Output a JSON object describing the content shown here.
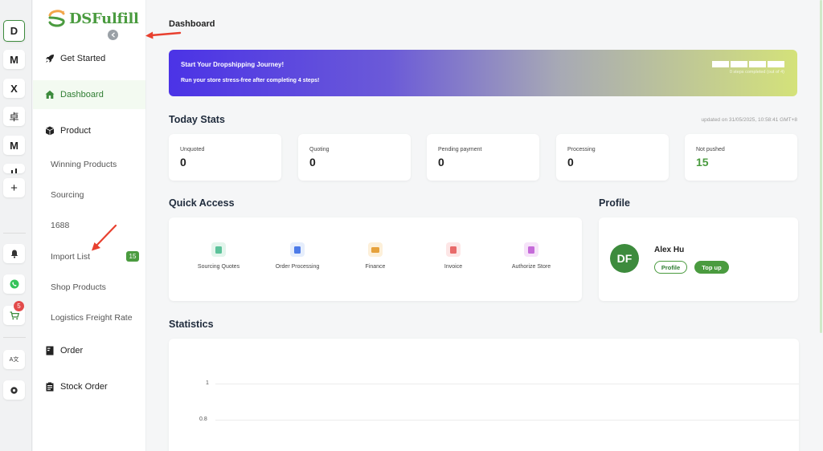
{
  "rail": {
    "items": [
      {
        "label": "D"
      },
      {
        "label": "M"
      },
      {
        "label": "X"
      },
      {
        "label": "卓"
      },
      {
        "label": "M"
      },
      {
        "label": "+"
      }
    ],
    "cart_badge": "5",
    "translate_label": "A文"
  },
  "brand": {
    "name": "DSFulfill",
    "color": "#4a9b3f"
  },
  "nav": {
    "get_started": "Get Started",
    "dashboard": "Dashboard",
    "product": "Product",
    "winning_products": "Winning Products",
    "sourcing": "Sourcing",
    "n1688": "1688",
    "import_list": "Import List",
    "import_list_count": "15",
    "shop_products": "Shop Products",
    "logistics": "Logistics Freight Rate",
    "order": "Order",
    "stock_order": "Stock Order"
  },
  "main": {
    "title": "Dashboard",
    "banner": {
      "title": "Start Your Dropshipping Journey!",
      "subtitle": "Run your store stress-free after completing 4 steps!",
      "steps_label": "0 steps completed (out of 4)",
      "steps_total": 4,
      "steps_completed": 0
    },
    "today_stats": {
      "title": "Today Stats",
      "updated": "updated on 31/05/2025, 10:58:41 GMT+8",
      "cards": [
        {
          "label": "Unquoted",
          "value": "0"
        },
        {
          "label": "Quoting",
          "value": "0"
        },
        {
          "label": "Pending payment",
          "value": "0"
        },
        {
          "label": "Processing",
          "value": "0"
        },
        {
          "label": "Not pushed",
          "value": "15"
        }
      ]
    },
    "quick_access": {
      "title": "Quick Access",
      "items": [
        {
          "label": "Sourcing Quotes",
          "bg": "#e3f5ec",
          "fg": "#5cc29a"
        },
        {
          "label": "Order Processing",
          "bg": "#e6eefc",
          "fg": "#4d7be8"
        },
        {
          "label": "Finance",
          "bg": "#fdf0d9",
          "fg": "#e6a23c"
        },
        {
          "label": "Invoice",
          "bg": "#fde6e6",
          "fg": "#e86a6a"
        },
        {
          "label": "Authorize Store",
          "bg": "#f6e3f9",
          "fg": "#c56bd9"
        }
      ]
    },
    "profile": {
      "title": "Profile",
      "initials": "DF",
      "name": "Alex Hu",
      "profile_btn": "Profile",
      "topup_btn": "Top up"
    },
    "statistics": {
      "title": "Statistics",
      "y_ticks": [
        "1",
        "0.8"
      ]
    }
  },
  "colors": {
    "accent": "#4a9b3f",
    "arrow": "#e8402f"
  }
}
